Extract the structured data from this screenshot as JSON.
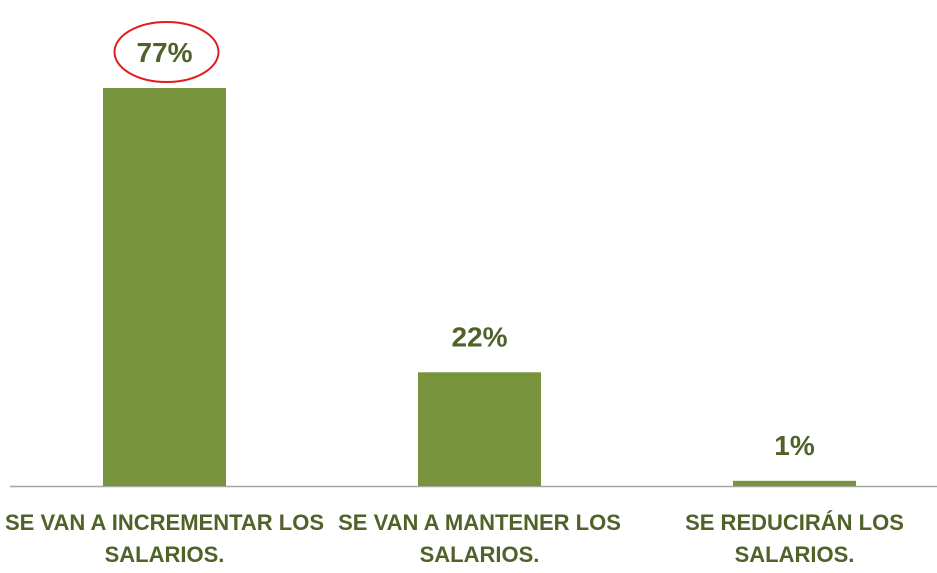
{
  "chart_data": {
    "type": "bar",
    "categories": [
      "SE VAN A INCREMENTAR LOS SALARIOS.",
      "SE VAN A MANTENER LOS SALARIOS.",
      "SE REDUCIRÁN LOS SALARIOS."
    ],
    "values": [
      77,
      22,
      1
    ],
    "value_labels": [
      "77%",
      "22%",
      "1%"
    ],
    "color": "#77933c"
  }
}
